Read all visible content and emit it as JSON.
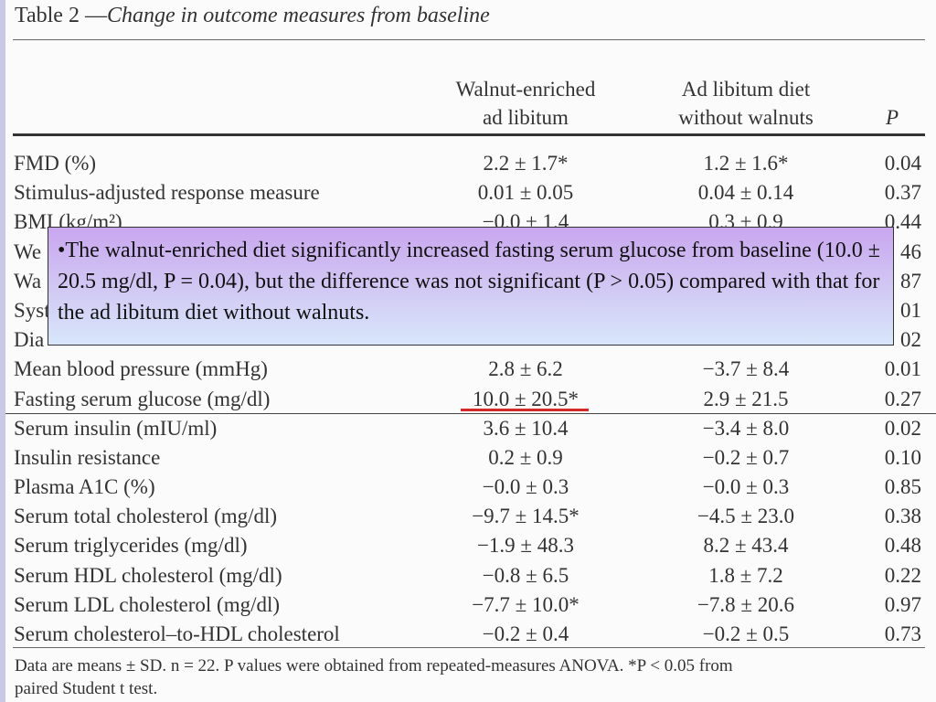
{
  "table": {
    "title_prefix": "Table 2 —",
    "title_rest": "Change in outcome measures from baseline",
    "columns": {
      "walnut_line1": "Walnut-enriched",
      "walnut_line2": "ad libitum",
      "adlib_line1": "Ad libitum diet",
      "adlib_line2": "without walnuts",
      "p": "P"
    },
    "rows": [
      {
        "label": "FMD (%)",
        "walnut": "2.2 ± 1.7*",
        "adlib": "1.2 ± 1.6*",
        "p": "0.04"
      },
      {
        "label": "Stimulus-adjusted response measure",
        "walnut": "0.01 ± 0.05",
        "adlib": "0.04 ± 0.14",
        "p": "0.37"
      },
      {
        "label": "BMI (kg/m²)",
        "walnut": "−0.0 ± 1.4",
        "adlib": "0.3 ± 0.9",
        "p": "0.44"
      },
      {
        "label": "We",
        "walnut": "",
        "adlib": "",
        "p": "46"
      },
      {
        "label": "Wa",
        "walnut": "",
        "adlib": "",
        "p": "87"
      },
      {
        "label": "Syst",
        "walnut": "",
        "adlib": "",
        "p": "01"
      },
      {
        "label": "Dia",
        "walnut": "",
        "adlib": "",
        "p": "02"
      },
      {
        "label": "Mean blood pressure (mmHg)",
        "walnut": "2.8 ± 6.2",
        "adlib": "−3.7 ± 8.4",
        "p": "0.01"
      },
      {
        "label": "Fasting serum glucose (mg/dl)",
        "walnut": "10.0 ± 20.5*",
        "adlib": "2.9 ± 21.5",
        "p": "0.27"
      },
      {
        "label": "Serum insulin (mIU/ml)",
        "walnut": "3.6 ± 10.4",
        "adlib": "−3.4 ± 8.0",
        "p": "0.02"
      },
      {
        "label": "Insulin resistance",
        "walnut": "0.2 ± 0.9",
        "adlib": "−0.2 ± 0.7",
        "p": "0.10"
      },
      {
        "label": "Plasma A1C (%)",
        "walnut": "−0.0 ± 0.3",
        "adlib": "−0.0 ± 0.3",
        "p": "0.85"
      },
      {
        "label": "Serum total cholesterol (mg/dl)",
        "walnut": "−9.7 ± 14.5*",
        "adlib": "−4.5 ± 23.0",
        "p": "0.38"
      },
      {
        "label": "Serum triglycerides (mg/dl)",
        "walnut": "−1.9 ± 48.3",
        "adlib": "8.2 ± 43.4",
        "p": "0.48"
      },
      {
        "label": "Serum HDL cholesterol (mg/dl)",
        "walnut": "−0.8 ± 6.5",
        "adlib": "1.8 ± 7.2",
        "p": "0.22"
      },
      {
        "label": "Serum LDL cholesterol (mg/dl)",
        "walnut": "−7.7 ± 10.0*",
        "adlib": "−7.8 ± 20.6",
        "p": "0.97"
      },
      {
        "label": "Serum cholesterol–to-HDL cholesterol",
        "walnut": "−0.2 ± 0.4",
        "adlib": "−0.2 ± 0.5",
        "p": "0.73"
      }
    ],
    "footnote_line1": "Data are means ± SD. n = 22. P values were obtained from repeated-measures ANOVA. *P < 0.05 from",
    "footnote_line2": "paired Student t test."
  },
  "callout": {
    "text": "•The walnut-enriched diet significantly increased fasting serum glucose from baseline (10.0 ± 20.5 mg/dl, P = 0.04), but the difference was not significant (P > 0.05) compared with that for the ad libitum diet without walnuts."
  },
  "colors": {
    "highlight_underline": "#d42a2a",
    "callout_top": "#c9a6ef",
    "callout_bottom": "#d8e7fb"
  }
}
